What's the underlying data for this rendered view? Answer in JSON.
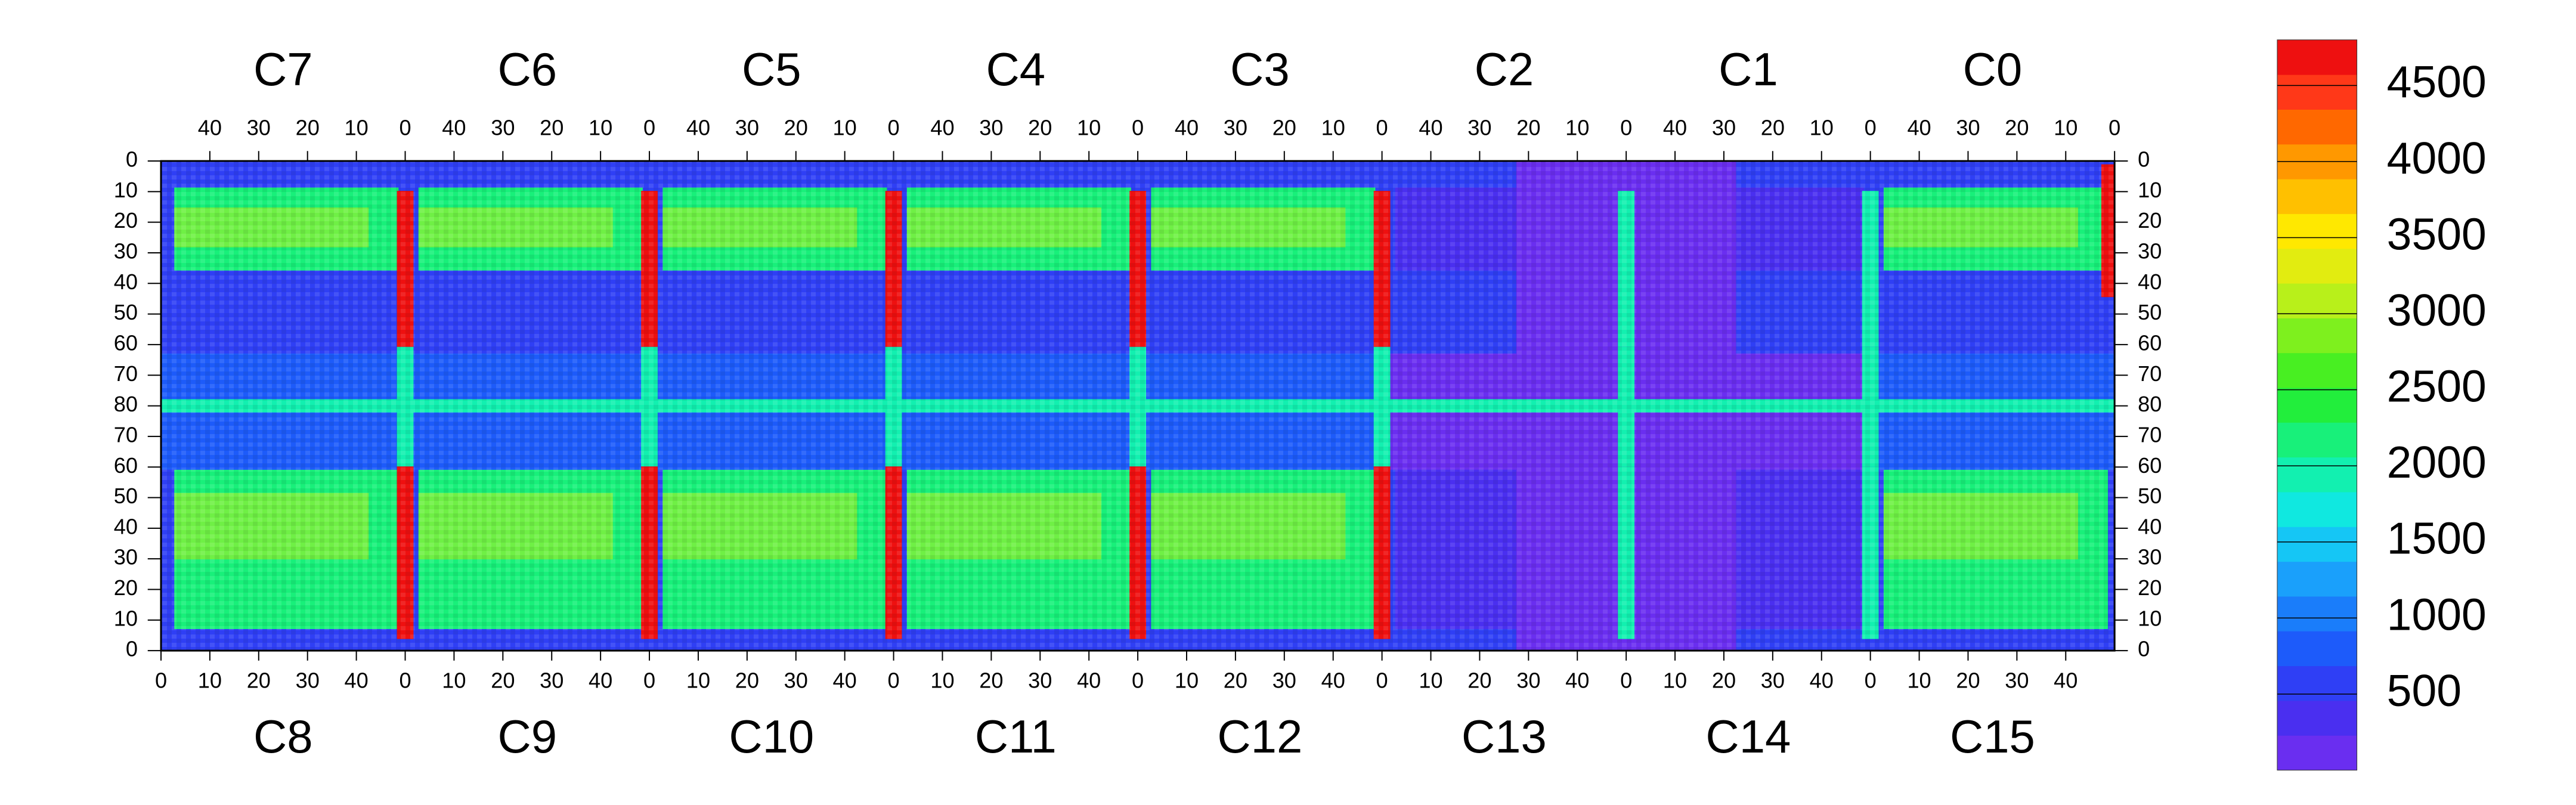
{
  "chart_data": {
    "type": "heatmap",
    "title": "",
    "top_chips": [
      "C7",
      "C6",
      "C5",
      "C4",
      "C3",
      "C2",
      "C1",
      "C0"
    ],
    "bottom_chips": [
      "C8",
      "C9",
      "C10",
      "C11",
      "C12",
      "C13",
      "C14",
      "C15"
    ],
    "top_x_ticks": [
      "40",
      "30",
      "20",
      "10",
      "0"
    ],
    "bottom_x_ticks": [
      "0",
      "10",
      "20",
      "30",
      "40"
    ],
    "y_ticks": [
      "0",
      "10",
      "20",
      "30",
      "40",
      "50",
      "60",
      "70",
      "80",
      "70",
      "60",
      "50",
      "40",
      "30",
      "20",
      "10",
      "0"
    ],
    "colorbar": {
      "min": 0,
      "max": 4800,
      "tick_labels": [
        "4500",
        "4000",
        "3500",
        "3000",
        "2500",
        "2000",
        "1500",
        "1000",
        "500"
      ],
      "tick_values": [
        4500,
        4000,
        3500,
        3000,
        2500,
        2000,
        1500,
        1000,
        500
      ],
      "colors": [
        "#6a2ef0",
        "#4a2ff0",
        "#2f3ff5",
        "#1d5bfa",
        "#1a7dfa",
        "#1aa0fb",
        "#15c6f5",
        "#10e8e0",
        "#12f0b0",
        "#18f07a",
        "#22ee3c",
        "#48ef22",
        "#7ef01e",
        "#b8f01a",
        "#e2ec10",
        "#ffe800",
        "#ffc000",
        "#ff9800",
        "#ff6800",
        "#ff3818",
        "#ee1010"
      ]
    },
    "dead_region_label": "",
    "grid": false
  }
}
